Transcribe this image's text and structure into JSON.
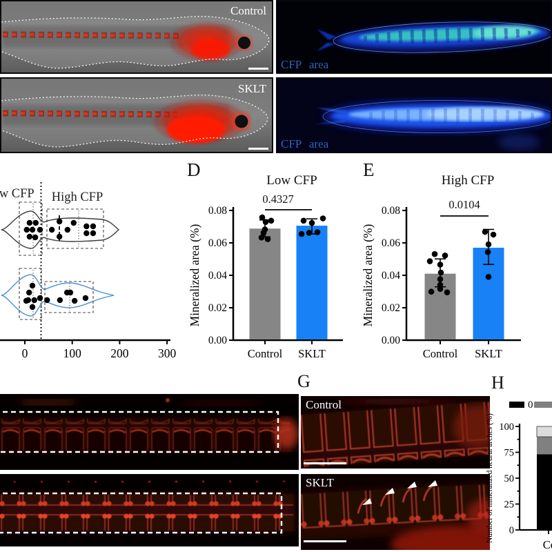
{
  "figure": {
    "panels": {
      "A": {
        "top_label": "Control",
        "bottom_label": "SKLT"
      },
      "B": {
        "cfp_label_top": "CFP area",
        "cfp_label_bottom": "CFP area"
      },
      "C": {
        "low_cfp_label": "Low CFP",
        "high_cfp_label": "High CFP"
      },
      "D": {
        "letter": "D",
        "title": "Low CFP",
        "p_value": "0.4327",
        "ylabel": "Mineralized area (%)"
      },
      "E": {
        "letter": "E",
        "title": "High CFP",
        "p_value": "0.0104",
        "ylabel": "Mineralized area (%)"
      },
      "G": {
        "letter": "G",
        "top_label": "Control",
        "bottom_label": "SKLT"
      },
      "H": {
        "letter": "H",
        "ylabel": "Number of mineralized neural arches (%)"
      }
    },
    "colors": {
      "blue_bar": "#1781f5",
      "gray_bar": "#868686",
      "violin_blue": "#4a90d8",
      "legend_black": "#000000",
      "legend_gray": "#808080",
      "legend_light": "#dcdcdc",
      "cfp_text": "#2e64b8",
      "red_fluorescence": "#cc2211",
      "white_annotation": "#ffffff"
    }
  },
  "chart_data": [
    {
      "id": "C",
      "type": "violin-scatter",
      "annotations": [
        "Low CFP",
        "High CFP"
      ],
      "x_ticks": [
        0,
        100,
        200,
        300
      ],
      "xlim": [
        -52,
        305
      ],
      "threshold_x": 34,
      "grid": false,
      "groups": [
        {
          "name": "top",
          "color": "#333333",
          "points": [
            [
              10,
              -10
            ],
            [
              23,
              -10
            ],
            [
              4,
              0
            ],
            [
              16,
              0
            ],
            [
              32,
              0
            ],
            [
              10,
              10
            ],
            [
              22,
              11
            ],
            [
              57,
              0
            ],
            [
              73,
              -12
            ],
            [
              73,
              10
            ],
            [
              90,
              0
            ],
            [
              103,
              -10
            ],
            [
              130,
              -5
            ],
            [
              144,
              -5
            ],
            [
              130,
              5
            ],
            [
              144,
              5
            ]
          ]
        },
        {
          "name": "bottom",
          "color": "#4a90d8",
          "points": [
            [
              16,
              -16
            ],
            [
              9,
              -6
            ],
            [
              7,
              5
            ],
            [
              20,
              5
            ],
            [
              3,
              6
            ],
            [
              16,
              15
            ],
            [
              32,
              2
            ],
            [
              47,
              5
            ],
            [
              74,
              5
            ],
            [
              89,
              -6
            ],
            [
              96,
              -6
            ],
            [
              105,
              6
            ],
            [
              128,
              2
            ]
          ]
        }
      ]
    },
    {
      "id": "D",
      "type": "bar",
      "title": "Low CFP",
      "p_value": "0.4327",
      "ylabel": "Mineralized area (%)",
      "ylim": [
        0,
        0.08
      ],
      "y_ticks": [
        0,
        0.02,
        0.04,
        0.06,
        0.08
      ],
      "grid": false,
      "series": [
        {
          "name": "Control",
          "color": "#868686",
          "mean": 0.0688,
          "err_low": 0.0637,
          "err_high": 0.0741,
          "points": [
            [
              0.0757,
              -4
            ],
            [
              0.0737,
              9
            ],
            [
              0.0729,
              1
            ],
            [
              0.0683,
              0
            ],
            [
              0.0662,
              -2
            ],
            [
              0.0633,
              -5
            ],
            [
              0.0623,
              4
            ]
          ]
        },
        {
          "name": "SKLT",
          "color": "#1781f5",
          "mean": 0.0706,
          "err_low": 0.0655,
          "err_high": 0.0748,
          "points": [
            [
              0.0751,
              16
            ],
            [
              0.0737,
              -12
            ],
            [
              0.0723,
              0
            ],
            [
              0.0666,
              8
            ],
            [
              0.0662,
              -4
            ],
            [
              0.0655,
              -15
            ]
          ]
        }
      ]
    },
    {
      "id": "E",
      "type": "bar",
      "title": "High CFP",
      "p_value": "0.0104",
      "ylabel": "Mineralized area (%)",
      "ylim": [
        0,
        0.08
      ],
      "y_ticks": [
        0,
        0.02,
        0.04,
        0.06,
        0.08
      ],
      "grid": false,
      "series": [
        {
          "name": "Control",
          "color": "#868686",
          "mean": 0.041,
          "err_low": 0.0329,
          "err_high": 0.0501,
          "points": [
            [
              0.0531,
              -8
            ],
            [
              0.0522,
              7
            ],
            [
              0.0487,
              -15
            ],
            [
              0.0466,
              0
            ],
            [
              0.0417,
              1
            ],
            [
              0.0376,
              0
            ],
            [
              0.0341,
              0
            ],
            [
              0.0316,
              0
            ],
            [
              0.0299,
              -13
            ],
            [
              0.0295,
              10
            ]
          ]
        },
        {
          "name": "SKLT",
          "color": "#1781f5",
          "mean": 0.057,
          "err_low": 0.0467,
          "err_high": 0.0683,
          "points": [
            [
              0.0668,
              -5
            ],
            [
              0.0651,
              7
            ],
            [
              0.0591,
              0
            ],
            [
              0.0543,
              -1
            ],
            [
              0.039,
              0
            ]
          ]
        }
      ]
    },
    {
      "id": "H",
      "type": "stacked-bar",
      "ylabel": "Number of mineralized neural arches (%)",
      "ylim": [
        0,
        100
      ],
      "y_ticks": [
        0,
        25,
        50,
        75,
        100
      ],
      "categories": [
        "Control"
      ],
      "grid": false,
      "legend": [
        {
          "label": "0",
          "color": "#000000"
        },
        {
          "label": "",
          "color": "#808080"
        }
      ],
      "series": [
        {
          "color": "#000000",
          "values": [
            73
          ]
        },
        {
          "color": "#808080",
          "values": [
            17
          ]
        },
        {
          "color": "#dcdcdc",
          "values": [
            10
          ]
        }
      ]
    }
  ]
}
